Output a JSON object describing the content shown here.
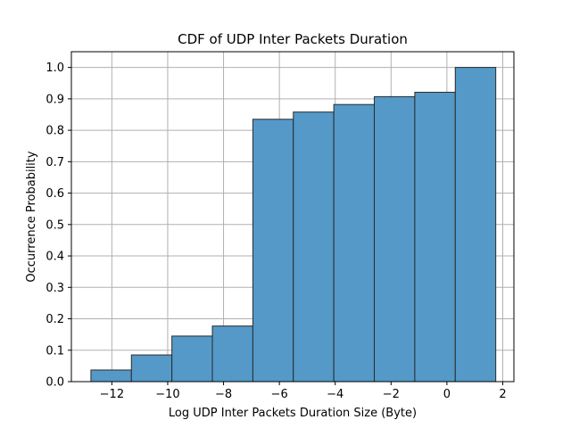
{
  "chart_data": {
    "type": "bar",
    "title": "CDF of UDP Inter Packets Duration",
    "xlabel": "Log UDP Inter Packets Duration Size (Byte)",
    "ylabel": "Occurrence Probability",
    "xlim": [
      -13.45,
      2.4
    ],
    "ylim": [
      0,
      1.05
    ],
    "grid": true,
    "bar_color": "#5499c7",
    "edge_color": "#2b2b2b",
    "grid_color": "#b0b0b0",
    "x_ticks": [
      -12,
      -10,
      -8,
      -6,
      -4,
      -2,
      0,
      2
    ],
    "x_tick_labels": [
      "−12",
      "−10",
      "−8",
      "−6",
      "−4",
      "−2",
      "0",
      "2"
    ],
    "y_ticks": [
      0.0,
      0.1,
      0.2,
      0.3,
      0.4,
      0.5,
      0.6,
      0.7,
      0.8,
      0.9,
      1.0
    ],
    "y_tick_labels": [
      "0.0",
      "0.1",
      "0.2",
      "0.3",
      "0.4",
      "0.5",
      "0.6",
      "0.7",
      "0.8",
      "0.9",
      "1.0"
    ],
    "bins": [
      {
        "x0": -12.75,
        "x1": -11.3,
        "value": 0.037
      },
      {
        "x0": -11.3,
        "x1": -9.85,
        "value": 0.085
      },
      {
        "x0": -9.85,
        "x1": -8.4,
        "value": 0.145
      },
      {
        "x0": -8.4,
        "x1": -6.95,
        "value": 0.177
      },
      {
        "x0": -6.95,
        "x1": -5.5,
        "value": 0.835
      },
      {
        "x0": -5.5,
        "x1": -4.05,
        "value": 0.858
      },
      {
        "x0": -4.05,
        "x1": -2.6,
        "value": 0.882
      },
      {
        "x0": -2.6,
        "x1": -1.15,
        "value": 0.907
      },
      {
        "x0": -1.15,
        "x1": 0.3,
        "value": 0.921
      },
      {
        "x0": 0.3,
        "x1": 1.75,
        "value": 1.0
      }
    ]
  }
}
